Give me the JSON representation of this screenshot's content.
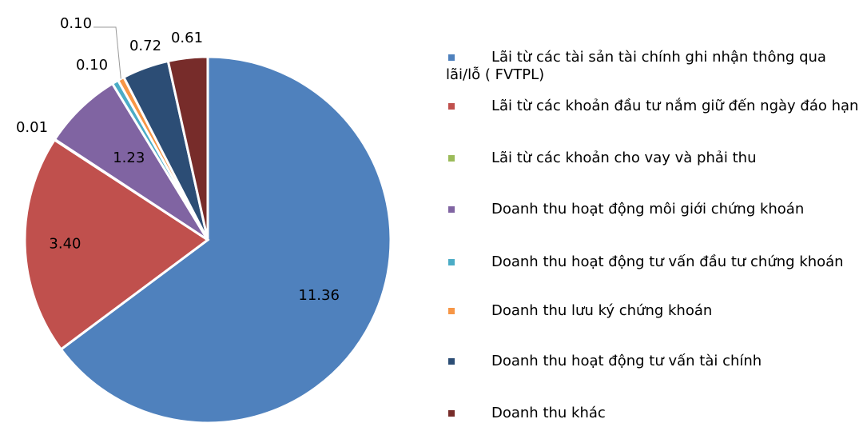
{
  "chart_data": {
    "type": "pie",
    "categories": [
      "Lãi từ các tài sản tài chính ghi nhận thông qua lãi/lỗ ( FVTPL)",
      "Lãi từ các khoản đầu tư nắm giữ đến ngày đáo hạn",
      "Lãi từ các khoản cho vay và phải thu",
      "Doanh thu hoạt động môi giới chứng khoán",
      "Doanh thu hoạt động tư vấn đầu tư chứng khoán",
      "Doanh thu lưu ký chứng khoán",
      "Doanh thu hoạt động tư vấn tài chính",
      "Doanh thu khác"
    ],
    "values": [
      11.36,
      3.4,
      0.01,
      1.23,
      0.1,
      0.1,
      0.72,
      0.61
    ],
    "value_labels": [
      "11.36",
      "3.40",
      "0.01",
      "1.23",
      "0.10",
      "0.10",
      "0.72",
      "0.61"
    ],
    "colors": [
      "#4f81bd",
      "#c0504d",
      "#9bbb59",
      "#8064a2",
      "#4bacc6",
      "#f79646",
      "#2c4d75",
      "#772c2a"
    ],
    "legend": "right"
  }
}
